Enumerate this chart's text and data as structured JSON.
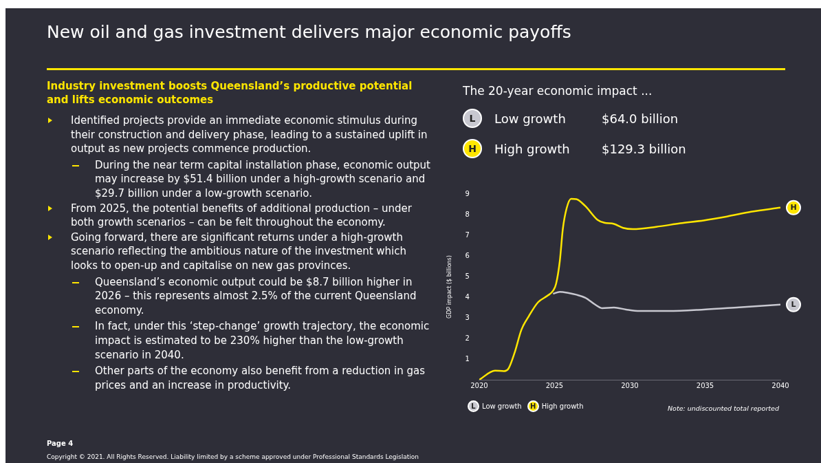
{
  "chart_data": {
    "type": "line",
    "title": "New oil and gas investment delivers major economic payoffs",
    "subtitle": "Industry investment boosts Queensland’s productive potential and lifts economic outcomes",
    "ylabel": "GDP impact ($ billions)",
    "xlim": [
      2020,
      2040
    ],
    "xticks": [
      2020,
      2025,
      2030,
      2035,
      2040
    ],
    "ylim": [
      0,
      9
    ],
    "yticks": [
      1,
      2,
      3,
      4,
      5,
      6,
      7,
      8,
      9
    ],
    "grid": false,
    "legend": "bottom",
    "marker": "none",
    "line_style": "solid",
    "series": [
      {
        "name": "Low growth",
        "color": "#c8c8d0",
        "x": [
          2024.9,
          2025.35,
          2025.95,
          2026.45,
          2027.05,
          2027.7,
          2028.15,
          2028.95,
          2029.75,
          2030.65,
          2032.55,
          2034.9,
          2037.25,
          2040
        ],
        "values": [
          4.17,
          4.26,
          4.2,
          4.12,
          3.97,
          3.64,
          3.47,
          3.5,
          3.4,
          3.33,
          3.33,
          3.4,
          3.51,
          3.64
        ]
      },
      {
        "name": "High growth",
        "color": "#ffe600",
        "x": [
          2020,
          2021.05,
          2021.65,
          2021.95,
          2022.35,
          2022.8,
          2023.3,
          2023.9,
          2024.55,
          2024.9,
          2025.1,
          2025.35,
          2025.55,
          2025.8,
          2026.1,
          2026.45,
          2027.05,
          2027.85,
          2028.3,
          2028.95,
          2029.55,
          2030.2,
          2031.75,
          2033.35,
          2034.9,
          2036.45,
          2038.05,
          2040
        ],
        "values": [
          0,
          0.44,
          0.42,
          0.55,
          1.31,
          2.42,
          3.09,
          3.75,
          4.08,
          4.31,
          4.64,
          5.75,
          7.3,
          8.3,
          8.77,
          8.75,
          8.41,
          7.75,
          7.61,
          7.55,
          7.36,
          7.3,
          7.41,
          7.58,
          7.72,
          7.91,
          8.14,
          8.34
        ]
      }
    ],
    "annotations": [
      "Identified projects provide an immediate economic stimulus during their construction and delivery phase, leading to a sustained uplift in output as new projects commence production.",
      "During the near term capital installation phase, economic output may increase by $51.4 billion under a high-growth scenario and $29.7 billion under a low-growth scenario.",
      "From 2025, the potential benefits of additional production – under both growth scenarios – can be felt throughout the economy.",
      "Going forward, there are significant returns under a high-growth scenario reflecting the ambitious nature of the investment which looks to open-up and capitalise on new gas provinces.",
      "Queensland’s economic output could be $8.7 billion higher in 2026 – this represents almost 2.5% of the current Queensland economy.",
      "In fact, under this ‘step-change’ growth trajectory, the economic impact is estimated to be 230% higher than the low-growth scenario in 2040.",
      "Other parts of the economy also benefit from a reduction in gas prices and an increase in productivity.",
      "The 20-year economic impact ...",
      "$64.0 billion",
      "$129.3 billion",
      {
        "text": "L",
        "x": 2040,
        "y": 3.64
      },
      {
        "text": "H",
        "x": 2040,
        "y": 8.34
      },
      "Note: undiscounted total reported",
      "Page 4",
      "Copyright © 2021. All Rights Reserved. Liability limited by a scheme approved under Professional Standards Legislation"
    ]
  }
}
